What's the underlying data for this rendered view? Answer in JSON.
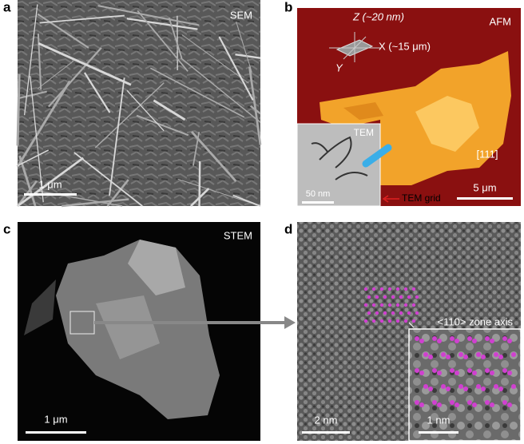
{
  "panels": [
    {
      "label": "a",
      "mode": "SEM",
      "scale_bar": "1 μm"
    },
    {
      "label": "b",
      "mode": "AFM",
      "scale_bar": "5 μm",
      "axis_z": "Z (~20 nm)",
      "axis_x": "X (~15 μm)",
      "axis_y": "Y",
      "direction": "[111]",
      "inset_mode": "TEM",
      "inset_scale_bar": "50 nm",
      "annotation": "TEM grid"
    },
    {
      "label": "c",
      "mode": "STEM",
      "scale_bar": "1 μm"
    },
    {
      "label": "d",
      "zone_axis": "<110> zone axis",
      "scale_bar": "2 nm",
      "inset_scale_bar": "1 nm"
    }
  ]
}
